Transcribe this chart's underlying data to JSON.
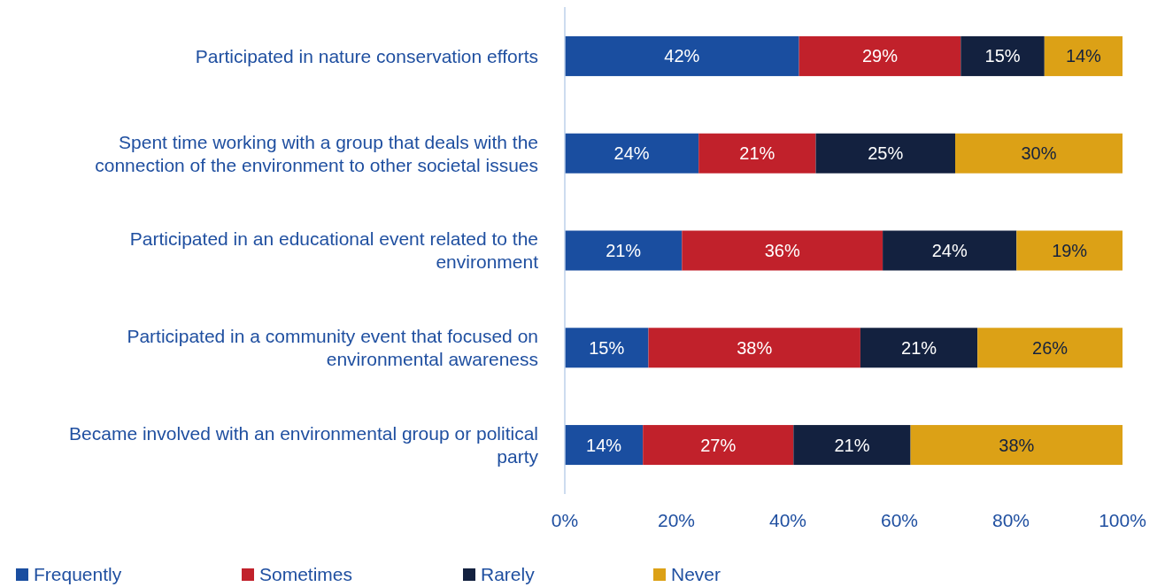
{
  "chart_data": {
    "type": "bar",
    "orientation": "horizontal",
    "stacked": true,
    "categories": [
      "Participated in nature conservation efforts",
      "Spent time working with a group that deals with the connection of the environment to other societal issues",
      "Participated in an educational event related to the environment",
      "Participated in a community event that focused on environmental awareness",
      "Became involved with an environmental group or political party"
    ],
    "series": [
      {
        "name": "Frequently",
        "color": "#1a4ea0",
        "values": [
          42,
          24,
          21,
          15,
          14
        ],
        "value_labels": [
          "42%",
          "24%",
          "21%",
          "15%",
          "14%"
        ]
      },
      {
        "name": "Sometimes",
        "color": "#c1212b",
        "values": [
          29,
          21,
          36,
          38,
          27
        ],
        "value_labels": [
          "29%",
          "21%",
          "36%",
          "38%",
          "27%"
        ]
      },
      {
        "name": "Rarely",
        "color": "#13213f",
        "values": [
          15,
          25,
          24,
          21,
          21
        ],
        "value_labels": [
          "15%",
          "25%",
          "24%",
          "21%",
          "21%"
        ]
      },
      {
        "name": "Never",
        "color": "#dca116",
        "values": [
          14,
          30,
          19,
          26,
          38
        ],
        "value_labels": [
          "14%",
          "30%",
          "19%",
          "26%",
          "38%"
        ]
      }
    ],
    "xlim": [
      0,
      100
    ],
    "xticks": [
      {
        "value": 0,
        "label": "0%"
      },
      {
        "value": 20,
        "label": "20%"
      },
      {
        "value": 40,
        "label": "40%"
      },
      {
        "value": 60,
        "label": "60%"
      },
      {
        "value": 80,
        "label": "80%"
      },
      {
        "value": 100,
        "label": "100%"
      }
    ],
    "legend": "bottom left"
  }
}
